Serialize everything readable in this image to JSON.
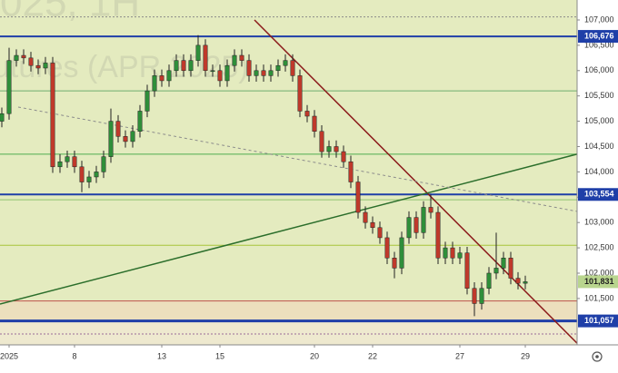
{
  "chart_data": {
    "type": "candlestick",
    "watermark": [
      "025, 1H",
      "utures (APR 2025)"
    ],
    "xlim": [
      -0.25,
      79.125
    ],
    "ylim": [
      100584,
      107394
    ],
    "yticks": [
      {
        "value": 101500,
        "label": "101,500"
      },
      {
        "value": 102000,
        "label": "102,000"
      },
      {
        "value": 102500,
        "label": "102,500"
      },
      {
        "value": 103000,
        "label": "103,000"
      },
      {
        "value": 103500,
        "label": "103,500"
      },
      {
        "value": 104000,
        "label": "104,000"
      },
      {
        "value": 104500,
        "label": "104,500"
      },
      {
        "value": 105000,
        "label": "105,000"
      },
      {
        "value": 105500,
        "label": "105,500"
      },
      {
        "value": 106000,
        "label": "106,000"
      },
      {
        "value": 106500,
        "label": "106,500"
      },
      {
        "value": 107000,
        "label": "107,000"
      }
    ],
    "xticks": [
      {
        "value": 1,
        "label": "2025"
      },
      {
        "value": 10,
        "label": "8"
      },
      {
        "value": 22,
        "label": "13"
      },
      {
        "value": 30,
        "label": "15"
      },
      {
        "value": 43,
        "label": "20"
      },
      {
        "value": 51,
        "label": "22"
      },
      {
        "value": 63,
        "label": "27"
      },
      {
        "value": 72,
        "label": "29"
      }
    ],
    "up_color": "#2f8f3a",
    "down_color": "#c0392b",
    "open": [
      105000,
      105150,
      106200,
      106300,
      106250,
      106100,
      106050,
      106150,
      104100,
      104200,
      104300,
      104100,
      103800,
      103900,
      104000,
      104300,
      105000,
      104700,
      104600,
      104800,
      105200,
      105600,
      105900,
      105800,
      106000,
      106200,
      106000,
      106200,
      106500,
      106000,
      106000,
      105800,
      106100,
      106300,
      106200,
      105900,
      106000,
      105900,
      106000,
      106100,
      106200,
      105900,
      105200,
      105100,
      104800,
      104400,
      104500,
      104400,
      104200,
      103800,
      103200,
      103000,
      102900,
      102700,
      102300,
      102100,
      102700,
      103100,
      102800,
      103300,
      103200,
      102300,
      102500,
      102300,
      102400,
      101700,
      101400,
      101700,
      102000,
      102100,
      102300,
      101900,
      101800
    ],
    "high": [
      105270,
      106450,
      106420,
      106420,
      106370,
      106220,
      106270,
      106270,
      104350,
      104420,
      104420,
      104220,
      104020,
      104120,
      104420,
      105250,
      105120,
      104820,
      104920,
      105320,
      105720,
      106020,
      106020,
      106120,
      106320,
      106320,
      106320,
      106700,
      106620,
      106120,
      106120,
      106220,
      106420,
      106420,
      106320,
      106120,
      106120,
      106120,
      106220,
      106320,
      106320,
      106020,
      105320,
      105220,
      104920,
      104620,
      104620,
      104520,
      104320,
      103920,
      103320,
      103120,
      103020,
      102820,
      102420,
      102820,
      103220,
      103220,
      103420,
      103550,
      103320,
      102620,
      102620,
      102520,
      102520,
      101820,
      101820,
      102120,
      102800,
      102420,
      102420,
      102020,
      101950
    ],
    "low": [
      104880,
      105030,
      106080,
      106130,
      105980,
      105930,
      105930,
      103980,
      103980,
      104080,
      103980,
      103600,
      103680,
      103780,
      103880,
      104180,
      104580,
      104480,
      104480,
      104680,
      105080,
      105480,
      105680,
      105680,
      105880,
      105880,
      105880,
      106080,
      105880,
      105880,
      105680,
      105680,
      105980,
      106080,
      105780,
      105780,
      105780,
      105780,
      105880,
      105980,
      105780,
      105080,
      104980,
      104680,
      104280,
      104280,
      104280,
      104080,
      103680,
      103080,
      102880,
      102780,
      102580,
      102180,
      101900,
      101980,
      102580,
      102680,
      102680,
      103080,
      102180,
      102180,
      102180,
      102180,
      101580,
      101150,
      101280,
      101580,
      101880,
      101980,
      101780,
      101680,
      101680
    ],
    "close": [
      105150,
      106200,
      106300,
      106250,
      106100,
      106050,
      106150,
      104100,
      104200,
      104300,
      104100,
      103800,
      103900,
      104000,
      104300,
      105000,
      104700,
      104600,
      104800,
      105200,
      105600,
      105900,
      105800,
      106000,
      106200,
      106000,
      106200,
      106500,
      106000,
      106000,
      105800,
      106100,
      106300,
      106200,
      105900,
      106000,
      105900,
      106000,
      106100,
      106200,
      105900,
      105200,
      105100,
      104800,
      104400,
      104500,
      104400,
      104200,
      103800,
      103200,
      103000,
      102900,
      102700,
      102300,
      102100,
      102700,
      103100,
      102800,
      103300,
      103200,
      102300,
      102500,
      102300,
      102400,
      101700,
      101400,
      101700,
      102000,
      102100,
      102300,
      101900,
      101800,
      101831
    ],
    "bands": [
      {
        "from": 101450,
        "to": 107394,
        "color": "#e4ebbf"
      },
      {
        "from": 101057,
        "to": 101450,
        "color": "#ecdfbd"
      },
      {
        "from": 100584,
        "to": 101057,
        "color": "#eee9cf"
      }
    ],
    "levels": [
      {
        "value": 107060,
        "color": "#8a8a8a",
        "width": 1,
        "dashed": true
      },
      {
        "value": 106676,
        "color": "#1f3fa8",
        "width": 2,
        "label": "106,676"
      },
      {
        "value": 105600,
        "color": "#6fae6f",
        "width": 1
      },
      {
        "value": 104350,
        "color": "#4fae4f",
        "width": 1
      },
      {
        "value": 103554,
        "color": "#1f3fa8",
        "width": 2,
        "label": "103,554"
      },
      {
        "value": 103450,
        "color": "#8fc46f",
        "width": 1
      },
      {
        "value": 102550,
        "color": "#a8c43a",
        "width": 1
      },
      {
        "value": 101450,
        "color": "#c0504d",
        "width": 1
      },
      {
        "value": 101057,
        "color": "#1f3fa8",
        "width": 3,
        "label": "101,057"
      },
      {
        "value": 100800,
        "color": "#9a6a9a",
        "width": 1,
        "dashed": true
      }
    ],
    "last_price": {
      "value": 101831,
      "label": "101,831",
      "color": "#b9d58e"
    },
    "trend_lines": [
      {
        "x": [
          34.75,
          79.1
        ],
        "values": [
          107000,
          100620
        ],
        "color": "#8b1a1a",
        "width": 1.5
      },
      {
        "x": [
          -0.25,
          79.1
        ],
        "values": [
          101390,
          104350
        ],
        "color": "#2b6e2b",
        "width": 1.5
      },
      {
        "x": [
          2.25,
          79.1
        ],
        "values": [
          105280,
          103220
        ],
        "color": "#8c8c8c",
        "width": 1,
        "dashed": true
      }
    ]
  }
}
